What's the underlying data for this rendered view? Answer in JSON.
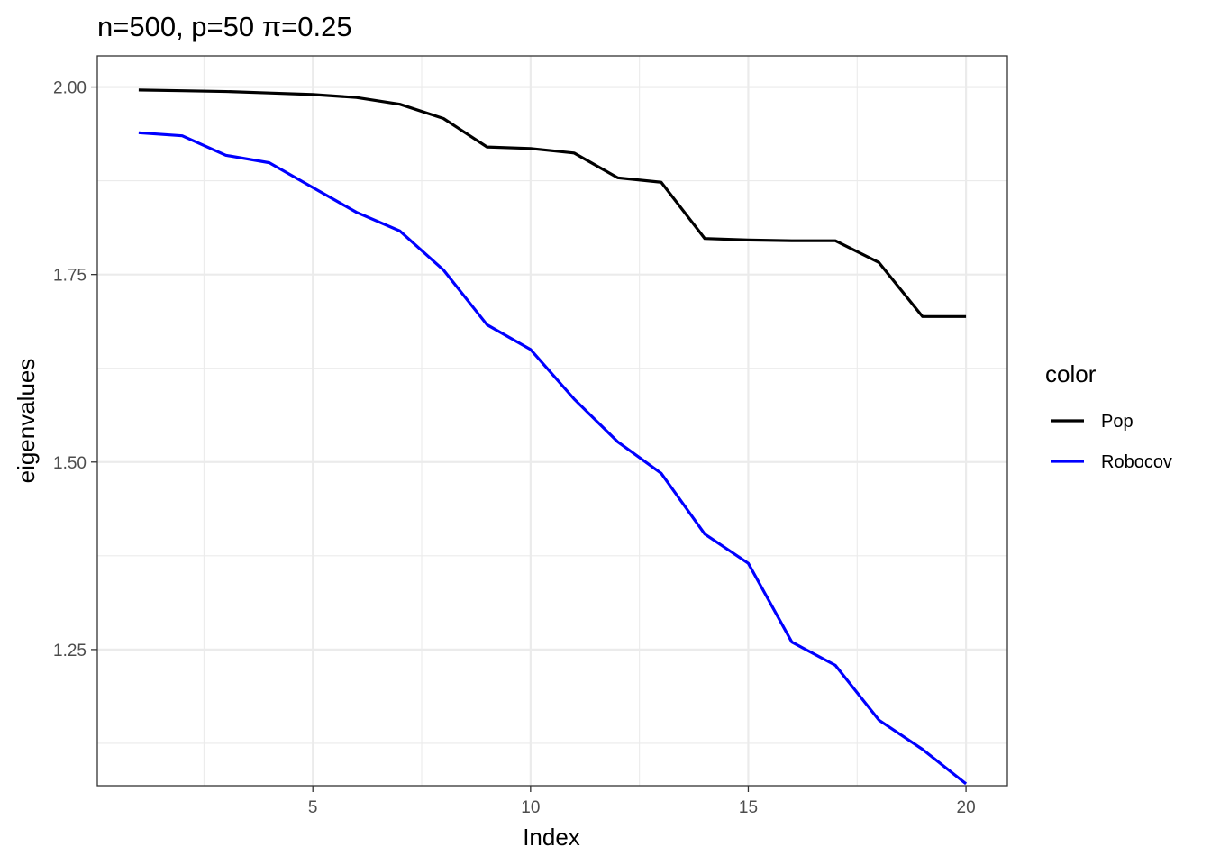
{
  "chart_data": {
    "type": "line",
    "title": "n=500, p=50 π=0.25",
    "xlabel": "Index",
    "ylabel": "eigenvalues",
    "xlim": [
      0.05,
      20.95
    ],
    "ylim": [
      1.0685,
      2.0415
    ],
    "x_ticks": [
      5,
      10,
      15,
      20
    ],
    "x_tick_labels": [
      "5",
      "10",
      "15",
      "20"
    ],
    "x_minor_ticks": [
      2.5,
      7.5,
      12.5,
      17.5
    ],
    "y_ticks": [
      1.25,
      1.5,
      1.75,
      2.0
    ],
    "y_tick_labels": [
      "1.25",
      "1.50",
      "1.75",
      "2.00"
    ],
    "y_minor_ticks": [
      1.125,
      1.375,
      1.625,
      1.875
    ],
    "grid": true,
    "legend": {
      "title": "color",
      "position": "right"
    },
    "x": [
      1,
      2,
      3,
      4,
      5,
      6,
      7,
      8,
      9,
      10,
      11,
      12,
      13,
      14,
      15,
      16,
      17,
      18,
      19,
      20
    ],
    "series": [
      {
        "name": "Pop",
        "color": "#000000",
        "values": [
          1.996,
          1.995,
          1.994,
          1.992,
          1.99,
          1.986,
          1.977,
          1.958,
          1.92,
          1.918,
          1.912,
          1.879,
          1.873,
          1.798,
          1.796,
          1.795,
          1.795,
          1.766,
          1.694,
          1.694
        ]
      },
      {
        "name": "Robocov",
        "color": "#0000ff",
        "values": [
          1.939,
          1.935,
          1.909,
          1.899,
          1.866,
          1.833,
          1.808,
          1.756,
          1.683,
          1.65,
          1.584,
          1.527,
          1.485,
          1.404,
          1.365,
          1.26,
          1.229,
          1.156,
          1.117,
          1.071
        ]
      }
    ]
  }
}
